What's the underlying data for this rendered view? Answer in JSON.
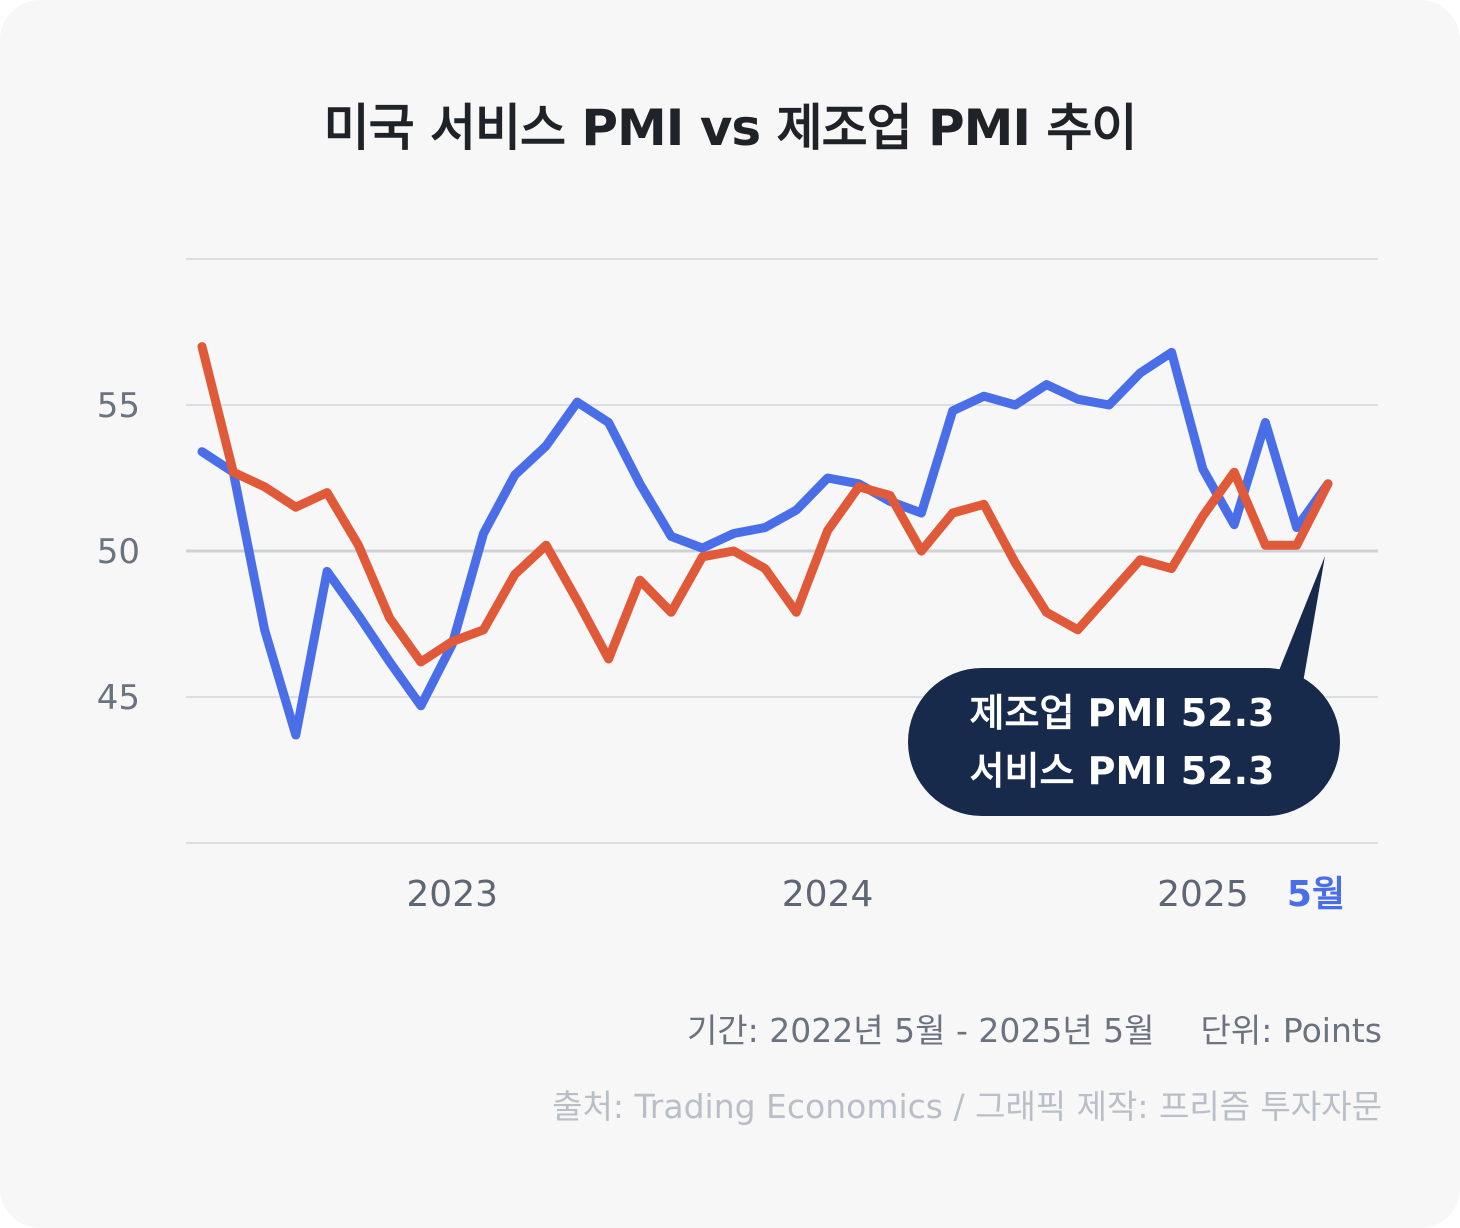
{
  "title": "미국 서비스 PMI vs 제조업 PMI 추이",
  "chart_data": {
    "type": "line",
    "title": "미국 서비스 PMI vs 제조업 PMI 추이",
    "x": [
      "2022-05",
      "2022-06",
      "2022-07",
      "2022-08",
      "2022-09",
      "2022-10",
      "2022-11",
      "2022-12",
      "2023-01",
      "2023-02",
      "2023-03",
      "2023-04",
      "2023-05",
      "2023-06",
      "2023-07",
      "2023-08",
      "2023-09",
      "2023-10",
      "2023-11",
      "2023-12",
      "2024-01",
      "2024-02",
      "2024-03",
      "2024-04",
      "2024-05",
      "2024-06",
      "2024-07",
      "2024-08",
      "2024-09",
      "2024-10",
      "2024-11",
      "2024-12",
      "2025-01",
      "2025-02",
      "2025-03",
      "2025-04",
      "2025-05"
    ],
    "x_tick_labels": [
      "2023",
      "2024",
      "2025"
    ],
    "x_highlight_label": "5월",
    "y_ticks": [
      45,
      50,
      55
    ],
    "ylim": [
      40,
      60
    ],
    "grid": true,
    "series": [
      {
        "color": "#4a6ee8",
        "values": [
          53.4,
          52.7,
          47.3,
          43.7,
          49.3,
          47.8,
          46.2,
          44.7,
          46.8,
          50.6,
          52.6,
          53.6,
          55.1,
          54.4,
          52.3,
          50.5,
          50.1,
          50.6,
          50.8,
          51.4,
          52.5,
          52.3,
          51.7,
          51.3,
          54.8,
          55.3,
          55.0,
          55.7,
          55.2,
          55.0,
          56.1,
          56.8,
          52.8,
          50.9,
          54.4,
          50.8,
          52.3
        ]
      },
      {
        "color": "#e05a3a",
        "values": [
          57.0,
          52.7,
          52.2,
          51.5,
          52.0,
          50.2,
          47.7,
          46.2,
          46.9,
          47.3,
          49.2,
          50.2,
          48.3,
          46.3,
          49.0,
          47.9,
          49.8,
          50.0,
          49.4,
          47.9,
          50.7,
          52.2,
          51.9,
          50.0,
          51.3,
          51.6,
          49.6,
          47.9,
          47.3,
          48.5,
          49.7,
          49.4,
          51.2,
          52.7,
          50.2,
          50.2,
          52.3
        ]
      }
    ],
    "annotation": {
      "lines": [
        "제조업 PMI 52.3",
        "서비스 PMI 52.3"
      ],
      "bg": "#172a4c"
    }
  },
  "footer": {
    "period": "기간: 2022년 5월 - 2025년 5월",
    "unit": "단위: Points",
    "source": "출처: Trading Economics / 그래픽 제작: 프리즘 투자자문"
  }
}
